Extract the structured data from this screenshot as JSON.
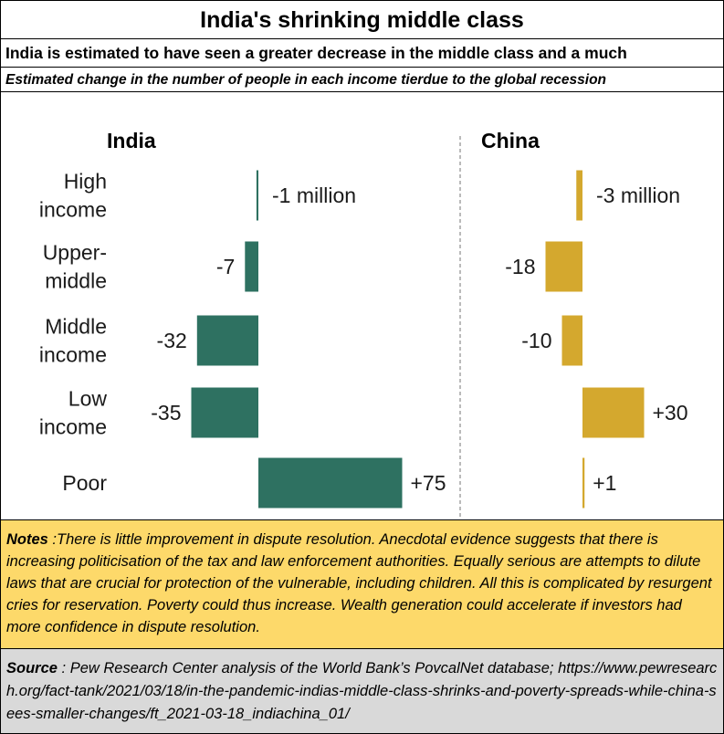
{
  "header": {
    "title": "India's shrinking middle class",
    "subtitle": "India is estimated to have seen a greater decrease in the middle class and a much",
    "caption": "Estimated change in the number of people in each income tierdue to the global recession"
  },
  "chart_data": {
    "type": "bar",
    "orientation": "horizontal",
    "categories": [
      "High income",
      "Upper-middle",
      "Middle income",
      "Low income",
      "Poor"
    ],
    "category_label_lines": [
      [
        "High",
        "income"
      ],
      [
        "Upper-",
        "middle"
      ],
      [
        "Middle",
        "income"
      ],
      [
        "Low",
        "income"
      ],
      [
        "Poor"
      ]
    ],
    "unit": "million",
    "panels": [
      {
        "name": "India",
        "color": "#2e7161",
        "values": [
          -1,
          -7,
          -32,
          -35,
          75
        ],
        "labels": [
          "-1 million",
          "-7",
          "-32",
          "-35",
          "+75"
        ]
      },
      {
        "name": "China",
        "color": "#d4a82e",
        "values": [
          -3,
          -18,
          -10,
          30,
          1
        ],
        "labels": [
          "-3 million",
          "-18",
          "-10",
          "+30",
          "+1"
        ]
      }
    ],
    "grid": false,
    "divider": "dashed-vertical"
  },
  "notes": {
    "label": "Notes",
    "text": " :There is little improvement in dispute resolution. Anecdotal evidence suggests that there is  increasing politicisation of the tax and law enforcement authorities. Equally serious are attempts to dilute laws that are crucial for protection of the vulnerable, including children. All this is complicated by resurgent cries for reservation. Poverty could thus increase.  Wealth generation could accelerate if investors had more confidence in dispute resolution."
  },
  "source": {
    "label": "Source",
    "text": " : Pew Research Center analysis of the World Bank’s PovcalNet database; https://www.pewresearch.org/fact-tank/2021/03/18/in-the-pandemic-indias-middle-class-shrinks-and-poverty-spreads-while-china-sees-smaller-changes/ft_2021-03-18_indiachina_01/"
  }
}
